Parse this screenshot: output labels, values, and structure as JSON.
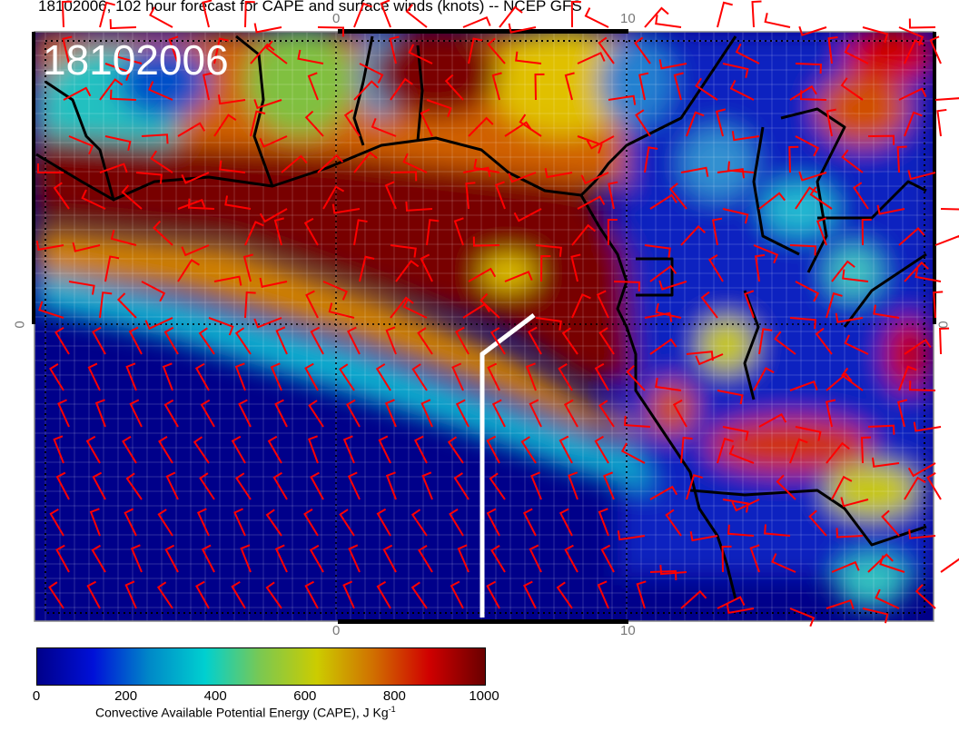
{
  "title": "18102006, 102 hour forecast for CAPE and surface winds (knots) -- NCEP GFS",
  "date_stamp": "18102006",
  "axes": {
    "top_ticks": [
      "0",
      "10"
    ],
    "bottom_ticks": [
      "0",
      "10"
    ],
    "left_tick": "0",
    "right_tick": "0"
  },
  "colorbar": {
    "label_main": "Convective Available Potential Energy (CAPE), J Kg",
    "label_sup": "-1",
    "ticks": [
      "0",
      "200",
      "400",
      "600",
      "800",
      "1000"
    ],
    "range": [
      0,
      1000
    ],
    "colormap": [
      "#00008a",
      "#0010d8",
      "#0088c8",
      "#00d0d0",
      "#7cc850",
      "#cccc00",
      "#d07000",
      "#d00000",
      "#6a0000"
    ]
  },
  "colors": {
    "wind_barbs": "#ff0000",
    "coastline": "#000000",
    "track_line": "#ffffff"
  },
  "layers": [
    "CAPE field",
    "surface wind barbs",
    "coastlines and borders",
    "lat/lon grid"
  ]
}
